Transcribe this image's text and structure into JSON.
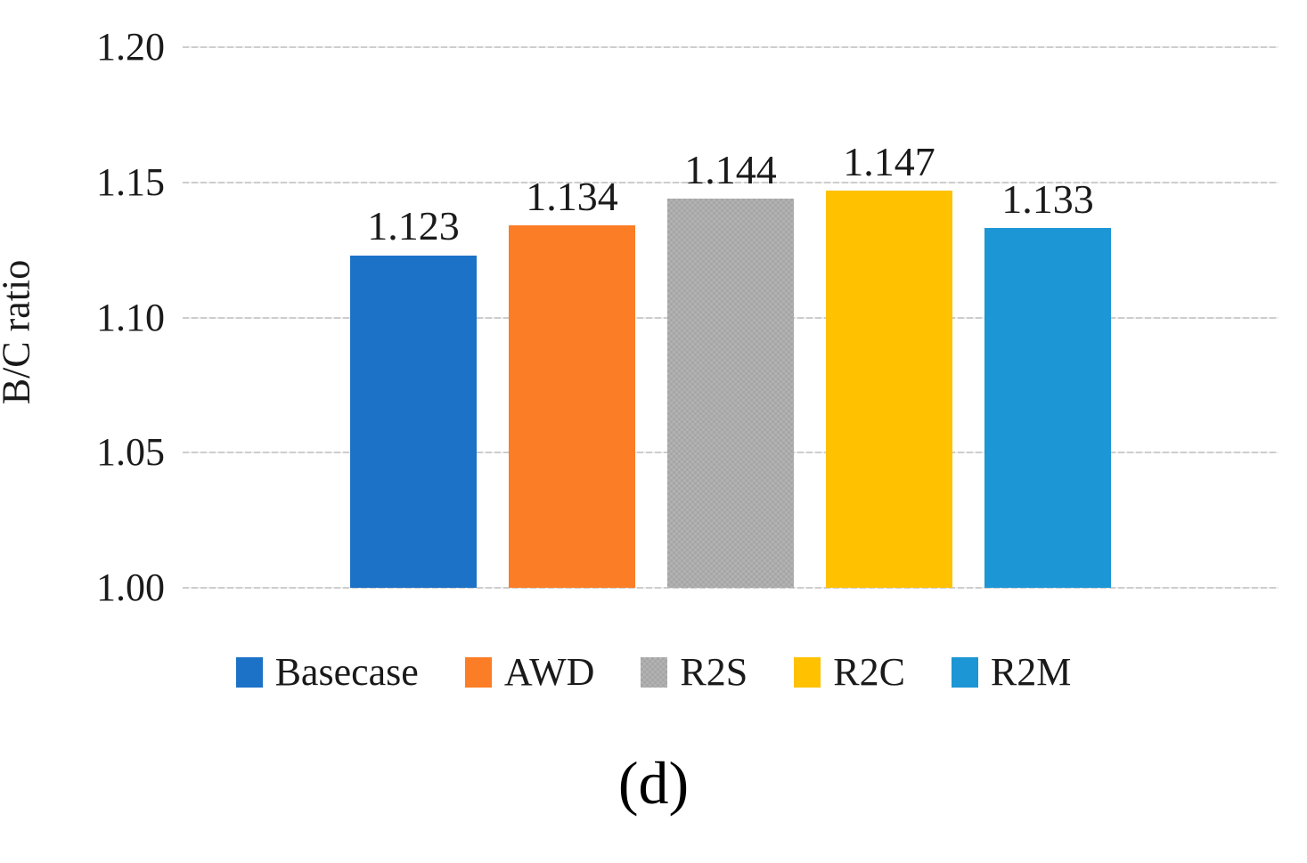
{
  "chart_data": {
    "type": "bar",
    "title": "",
    "ylabel": "B/C ratio",
    "xlabel": "",
    "caption": "(d)",
    "ylim": [
      1.0,
      1.2
    ],
    "yticks": [
      {
        "value": 1.2,
        "label": "1.20"
      },
      {
        "value": 1.15,
        "label": "1.15"
      },
      {
        "value": 1.1,
        "label": "1.10"
      },
      {
        "value": 1.05,
        "label": "1.05"
      },
      {
        "value": 1.0,
        "label": "1.00"
      }
    ],
    "grid": true,
    "gridline_color": "#cdcdcd",
    "legend_position": "bottom",
    "series": [
      {
        "name": "Basecase",
        "value": 1.123,
        "data_label": "1.123",
        "color": "#1c72c6",
        "pattern": false
      },
      {
        "name": "AWD",
        "value": 1.134,
        "data_label": "1.134",
        "color": "#fb7d26",
        "pattern": false
      },
      {
        "name": "R2S",
        "value": 1.144,
        "data_label": "1.144",
        "color": "#a6a6a6",
        "pattern": true
      },
      {
        "name": "R2C",
        "value": 1.147,
        "data_label": "1.147",
        "color": "#ffc100",
        "pattern": false
      },
      {
        "name": "R2M",
        "value": 1.133,
        "data_label": "1.133",
        "color": "#1c96d4",
        "pattern": false
      }
    ]
  }
}
